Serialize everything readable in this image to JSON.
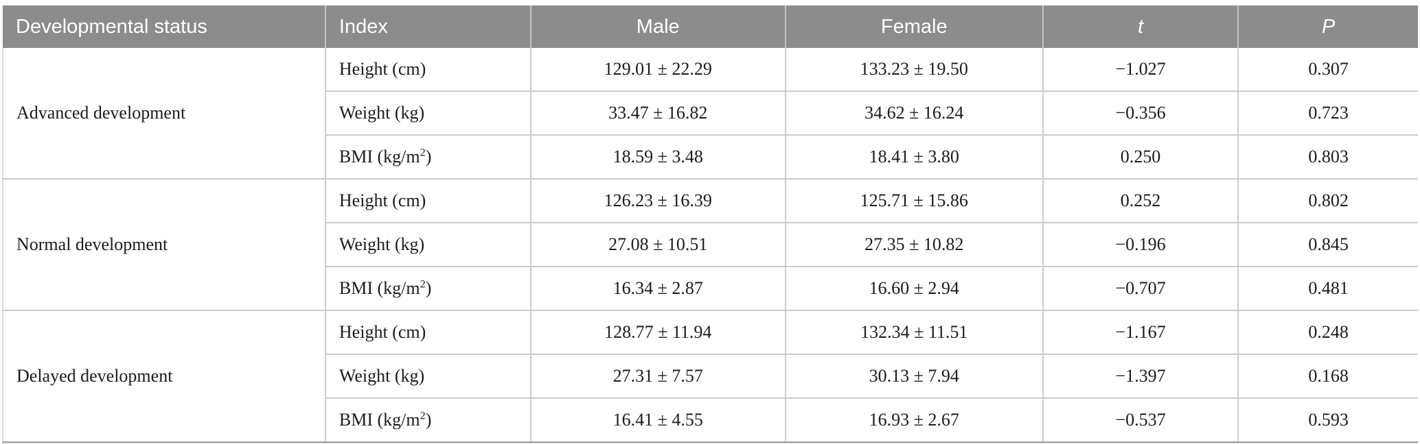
{
  "table": {
    "header": {
      "status": "Developmental status",
      "index": "Index",
      "male": "Male",
      "female": "Female",
      "t": "t",
      "p": "P"
    },
    "index_superscript_marker": "²",
    "groups": [
      {
        "status": "Advanced development",
        "rows": [
          {
            "index": "Height (cm)",
            "male": "129.01 ± 22.29",
            "female": "133.23 ± 19.50",
            "t": "−1.027",
            "p": "0.307"
          },
          {
            "index": "Weight (kg)",
            "male": "33.47 ± 16.82",
            "female": "34.62 ± 16.24",
            "t": "−0.356",
            "p": "0.723"
          },
          {
            "index": "BMI (kg/m²)",
            "male": "18.59 ± 3.48",
            "female": "18.41 ± 3.80",
            "t": "0.250",
            "p": "0.803"
          }
        ]
      },
      {
        "status": "Normal development",
        "rows": [
          {
            "index": "Height (cm)",
            "male": "126.23 ± 16.39",
            "female": "125.71 ± 15.86",
            "t": "0.252",
            "p": "0.802"
          },
          {
            "index": "Weight (kg)",
            "male": "27.08 ± 10.51",
            "female": "27.35 ± 10.82",
            "t": "−0.196",
            "p": "0.845"
          },
          {
            "index": "BMI (kg/m²)",
            "male": "16.34 ± 2.87",
            "female": "16.60 ± 2.94",
            "t": "−0.707",
            "p": "0.481"
          }
        ]
      },
      {
        "status": "Delayed development",
        "rows": [
          {
            "index": "Height (cm)",
            "male": "128.77 ± 11.94",
            "female": "132.34 ± 11.51",
            "t": "−1.167",
            "p": "0.248"
          },
          {
            "index": "Weight (kg)",
            "male": "27.31 ± 7.57",
            "female": "30.13 ± 7.94",
            "t": "−1.397",
            "p": "0.168"
          },
          {
            "index": "BMI (kg/m²)",
            "male": "16.41 ± 4.55",
            "female": "16.93 ± 2.67",
            "t": "−0.537",
            "p": "0.593"
          }
        ]
      }
    ]
  },
  "colors": {
    "header_bg": "#8c8c8c",
    "header_text": "#ffffff",
    "grid_line": "#cbcbcb",
    "header_separator": "#c4c4c4",
    "table_bottom_line": "#b0b0b0",
    "body_text": "#1c1c1c"
  }
}
